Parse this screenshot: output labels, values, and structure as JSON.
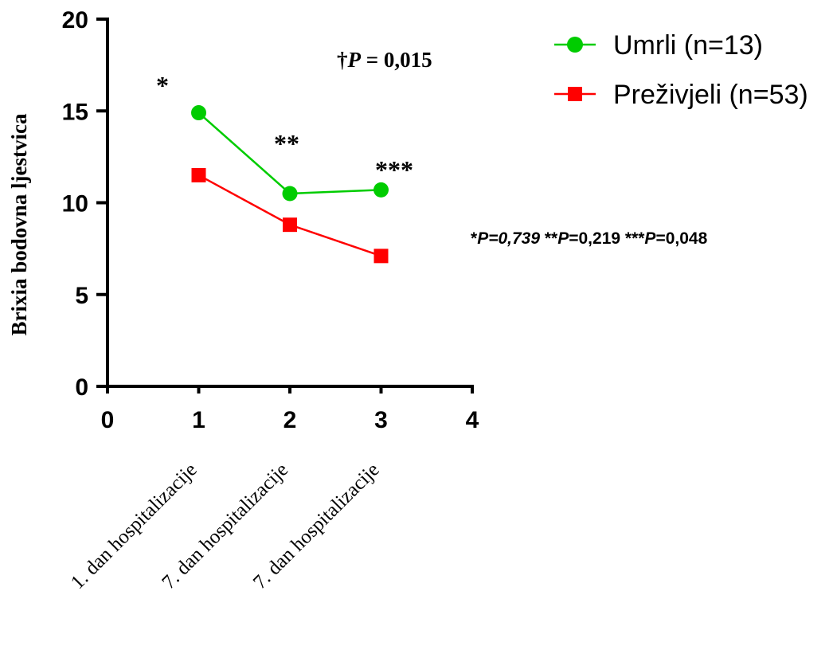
{
  "chart_data": {
    "type": "line",
    "ylabel": "Brixia bodovna ljestvica",
    "xlim": [
      0,
      4
    ],
    "ylim": [
      0,
      20
    ],
    "x_ticks": [
      "0",
      "1",
      "2",
      "3",
      "4"
    ],
    "y_ticks": [
      "0",
      "5",
      "10",
      "15",
      "20"
    ],
    "grid": false,
    "legend_position": "top-right",
    "category_labels": [
      "1. dan hospitalizacije",
      "7. dan hospitalizacije",
      "7. dan hospitalizacije"
    ],
    "series": [
      {
        "name": "Umrli (n=13)",
        "marker": "circle",
        "color": "#00cc00",
        "x": [
          1,
          2,
          3
        ],
        "y": [
          14.9,
          10.5,
          10.7
        ]
      },
      {
        "name": "Preživjeli (n=53)",
        "marker": "square",
        "color": "#ff0000",
        "x": [
          1,
          2,
          3
        ],
        "y": [
          11.5,
          8.8,
          7.1
        ]
      }
    ],
    "annotations": {
      "dagger": {
        "symbol": "†",
        "p_label": "P",
        "value": " = 0,015"
      },
      "stars": [
        "*",
        "**",
        "***"
      ],
      "p_values": [
        {
          "stars": "*",
          "p": "P",
          "value": "=0,739"
        },
        {
          "stars": " **",
          "p": "P",
          "value": "=0,219"
        },
        {
          "stars": " ***",
          "p": "P",
          "value": "=0,048"
        }
      ]
    }
  }
}
